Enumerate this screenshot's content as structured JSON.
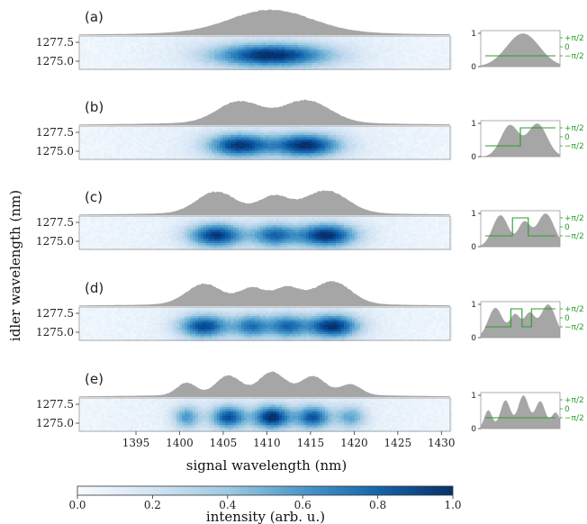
{
  "chart_data": {
    "type": "heatmap",
    "xlabel": "signal wavelength (nm)",
    "ylabel": "idler wavelength (nm)",
    "xlim": [
      1388.5,
      1431
    ],
    "x_ticks": [
      "1395",
      "1400",
      "1405",
      "1410",
      "1415",
      "1420",
      "1425",
      "1430"
    ],
    "y_ticks": [
      "1277.5",
      "1275.0"
    ],
    "colorbar": {
      "label": "intensity (arb. u.)",
      "range": [
        0,
        1
      ],
      "ticks": [
        "0.0",
        "0.2",
        "0.4",
        "0.6",
        "0.8",
        "1.0"
      ],
      "color_low": "#ffffff",
      "color_high": "#08306b"
    },
    "marginal_color": "#a6a6a6",
    "phase_color": "#2a9d2a",
    "phase_ticks": [
      "+π/2",
      "0",
      "−π/2"
    ],
    "inset_y_ticks": [
      "1",
      "0"
    ],
    "panels": [
      {
        "label": "(a)",
        "peaks_nm": [
          1410.5
        ],
        "widths_nm": [
          4.6
        ],
        "amplitudes": [
          1.0
        ],
        "phase_steps": []
      },
      {
        "label": "(b)",
        "peaks_nm": [
          1406.8,
          1414.5
        ],
        "widths_nm": [
          2.5,
          2.7
        ],
        "amplitudes": [
          0.95,
          1.0
        ],
        "phase_steps": [
          {
            "at": 0.5,
            "to": "+π/2"
          }
        ]
      },
      {
        "label": "(c)",
        "peaks_nm": [
          1404.2,
          1410.8,
          1416.8
        ],
        "widths_nm": [
          2.2,
          1.7,
          2.4
        ],
        "amplitudes": [
          0.95,
          0.72,
          1.0
        ],
        "phase_steps": [
          {
            "at": 0.4,
            "to": "+π/2"
          },
          {
            "at": 0.6,
            "to": "−π/2"
          }
        ]
      },
      {
        "label": "(d)",
        "peaks_nm": [
          1402.8,
          1408.3,
          1412.3,
          1417.5
        ],
        "widths_nm": [
          2.0,
          1.5,
          1.5,
          2.1
        ],
        "amplitudes": [
          0.9,
          0.68,
          0.7,
          1.0
        ],
        "phase_steps": [
          {
            "at": 0.38,
            "to": "+π/2"
          },
          {
            "at": 0.52,
            "to": "−π/2"
          },
          {
            "at": 0.64,
            "to": "+π/2"
          }
        ]
      },
      {
        "label": "(e)",
        "peaks_nm": [
          1400.8,
          1405.6,
          1410.6,
          1415.3,
          1419.6
        ],
        "widths_nm": [
          1.1,
          1.4,
          1.5,
          1.4,
          1.2
        ],
        "amplitudes": [
          0.55,
          0.85,
          1.0,
          0.82,
          0.48
        ],
        "phase_steps": []
      }
    ]
  }
}
